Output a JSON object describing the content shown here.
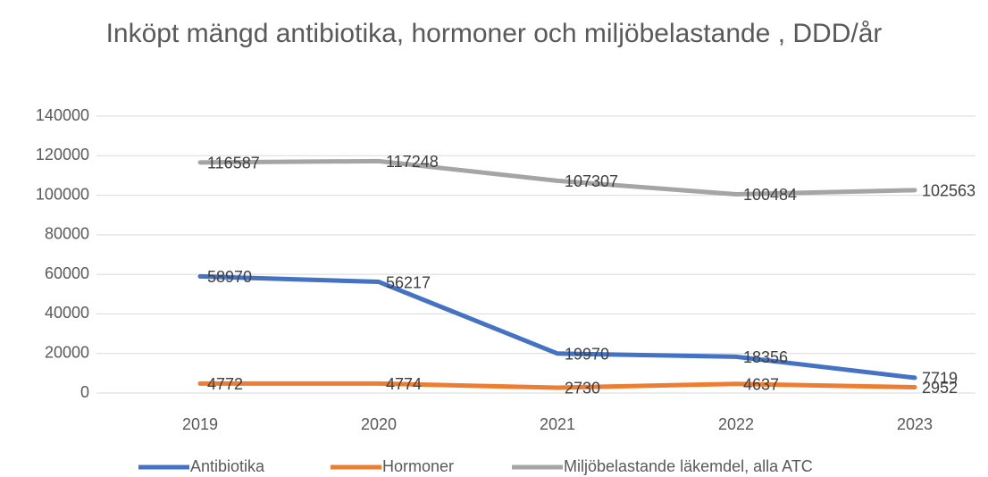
{
  "chart_data": {
    "type": "line",
    "title": "Inköpt mängd antibiotika, hormoner och miljöbelastande , DDD/år",
    "categories": [
      "2019",
      "2020",
      "2021",
      "2022",
      "2023"
    ],
    "series": [
      {
        "name": "Antibiotika",
        "color": "#4472c4",
        "values": [
          58970,
          56217,
          19970,
          18356,
          7719
        ]
      },
      {
        "name": "Hormoner",
        "color": "#ed7d31",
        "values": [
          4772,
          4774,
          2730,
          4637,
          2952
        ]
      },
      {
        "name": "Miljöbelastande läkemdel, alla ATC",
        "color": "#a5a5a5",
        "values": [
          116587,
          117248,
          107307,
          100484,
          102563
        ]
      }
    ],
    "ylim": [
      0,
      140000
    ],
    "yticks": [
      0,
      20000,
      40000,
      60000,
      80000,
      100000,
      120000,
      140000
    ],
    "grid": true,
    "legend": "bottom"
  }
}
